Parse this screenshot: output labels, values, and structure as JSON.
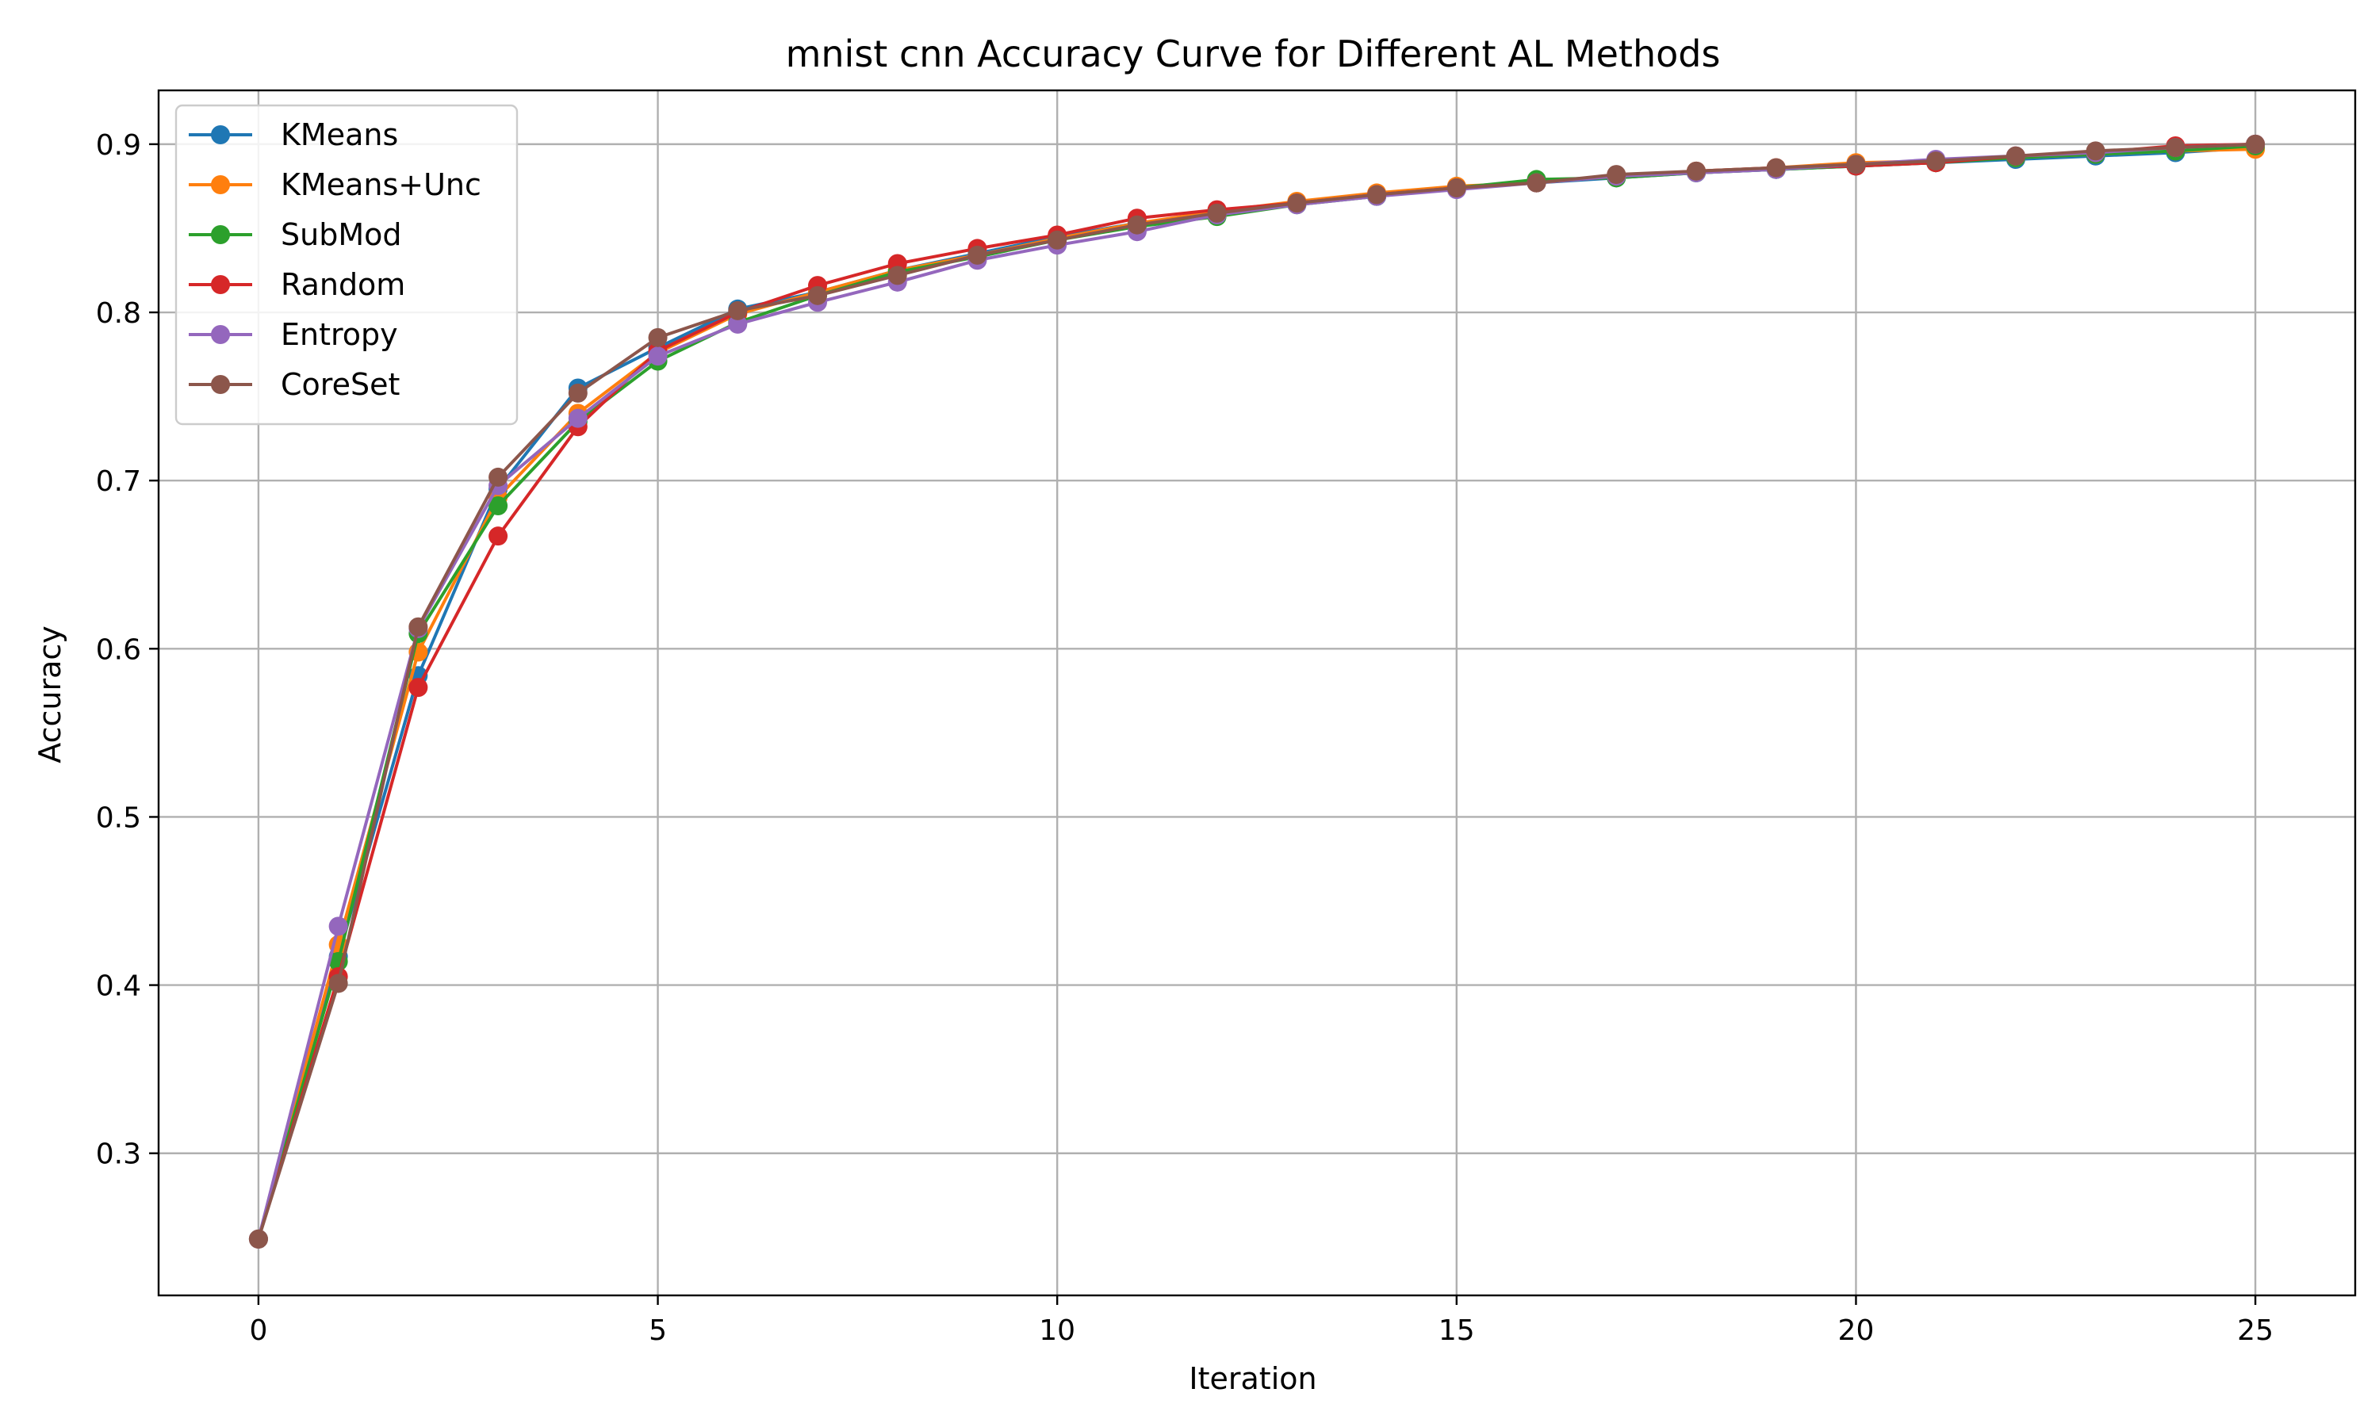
{
  "chart_data": {
    "type": "line",
    "title": "mnist cnn Accuracy Curve for Different AL Methods",
    "xlabel": "Iteration",
    "ylabel": "Accuracy",
    "xlim": [
      -1.25,
      26.25
    ],
    "ylim": [
      0.2155,
      0.932
    ],
    "xticks": [
      0,
      5,
      10,
      15,
      20,
      25
    ],
    "yticks": [
      0.3,
      0.4,
      0.5,
      0.6,
      0.7,
      0.8,
      0.9
    ],
    "xtick_labels": [
      "0",
      "5",
      "10",
      "15",
      "20",
      "25"
    ],
    "ytick_labels": [
      "0.3",
      "0.4",
      "0.5",
      "0.6",
      "0.7",
      "0.8",
      "0.9"
    ],
    "grid": true,
    "legend_position": "top-left",
    "x": [
      0,
      1,
      2,
      3,
      4,
      5,
      6,
      7,
      8,
      9,
      10,
      11,
      12,
      13,
      14,
      15,
      16,
      17,
      18,
      19,
      20,
      21,
      22,
      23,
      24,
      25
    ],
    "series": [
      {
        "name": "KMeans",
        "color": "#1f77b4",
        "values": [
          0.249,
          0.417,
          0.584,
          0.695,
          0.755,
          0.779,
          0.802,
          0.812,
          0.825,
          0.835,
          0.845,
          0.853,
          0.858,
          0.865,
          0.869,
          0.874,
          0.877,
          0.88,
          0.883,
          0.885,
          0.887,
          0.889,
          0.891,
          0.893,
          0.895,
          0.898
        ]
      },
      {
        "name": "KMeans+Unc",
        "color": "#ff7f0e",
        "values": [
          0.249,
          0.424,
          0.598,
          0.69,
          0.74,
          0.776,
          0.799,
          0.812,
          0.825,
          0.834,
          0.844,
          0.853,
          0.86,
          0.866,
          0.871,
          0.875,
          0.877,
          0.881,
          0.884,
          0.886,
          0.889,
          0.89,
          0.892,
          0.894,
          0.896,
          0.897
        ]
      },
      {
        "name": "SubMod",
        "color": "#2ca02c",
        "values": [
          0.249,
          0.414,
          0.609,
          0.685,
          0.735,
          0.771,
          0.794,
          0.81,
          0.824,
          0.833,
          0.843,
          0.851,
          0.857,
          0.864,
          0.869,
          0.874,
          0.879,
          0.88,
          0.883,
          0.885,
          0.887,
          0.889,
          0.892,
          0.894,
          0.896,
          0.899
        ]
      },
      {
        "name": "Random",
        "color": "#d62728",
        "values": [
          0.249,
          0.405,
          0.577,
          0.667,
          0.732,
          0.777,
          0.8,
          0.816,
          0.829,
          0.838,
          0.846,
          0.856,
          0.861,
          0.865,
          0.87,
          0.874,
          0.877,
          0.881,
          0.884,
          0.886,
          0.887,
          0.889,
          0.893,
          0.895,
          0.899,
          0.9
        ]
      },
      {
        "name": "Entropy",
        "color": "#9467bd",
        "values": [
          0.249,
          0.435,
          0.612,
          0.697,
          0.737,
          0.774,
          0.793,
          0.806,
          0.818,
          0.831,
          0.84,
          0.848,
          0.858,
          0.864,
          0.869,
          0.873,
          0.877,
          0.881,
          0.883,
          0.885,
          0.888,
          0.891,
          0.893,
          0.895,
          0.898,
          0.9
        ]
      },
      {
        "name": "CoreSet",
        "color": "#8c564b",
        "values": [
          0.249,
          0.401,
          0.613,
          0.702,
          0.752,
          0.785,
          0.801,
          0.81,
          0.822,
          0.834,
          0.843,
          0.852,
          0.859,
          0.865,
          0.87,
          0.874,
          0.877,
          0.882,
          0.884,
          0.886,
          0.888,
          0.89,
          0.893,
          0.896,
          0.898,
          0.9
        ]
      }
    ]
  }
}
